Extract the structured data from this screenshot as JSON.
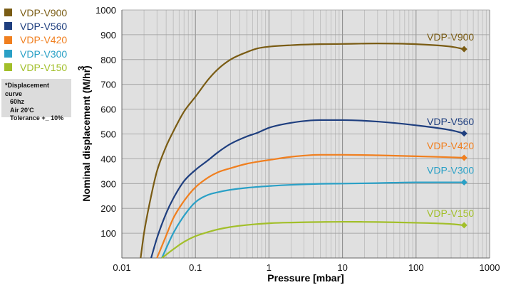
{
  "chart_data": {
    "type": "line",
    "title": "",
    "xlabel": "Pressure [mbar]",
    "ylabel": "Nominal displacement (M/hr)",
    "ylabel_superscript": "3",
    "xscale": "log",
    "xlim": [
      0.01,
      1000
    ],
    "ylim": [
      0,
      1000
    ],
    "x_ticks": [
      "0.01",
      "0.1",
      "1",
      "10",
      "100",
      "1000"
    ],
    "y_ticks": [
      "100",
      "200",
      "300",
      "400",
      "500",
      "600",
      "700",
      "800",
      "900",
      "1000"
    ],
    "grid": true,
    "legend_position": "left",
    "series": [
      {
        "name": "VDP-V900",
        "color": "#7a5c14",
        "x": [
          0.018,
          0.02,
          0.025,
          0.03,
          0.04,
          0.05,
          0.07,
          0.1,
          0.15,
          0.2,
          0.3,
          0.5,
          0.7,
          1,
          2,
          5,
          10,
          30,
          100,
          300,
          450
        ],
        "y": [
          0,
          100,
          250,
          350,
          450,
          510,
          590,
          650,
          720,
          760,
          800,
          830,
          845,
          852,
          858,
          862,
          863,
          865,
          862,
          852,
          842
        ]
      },
      {
        "name": "VDP-V560",
        "color": "#1f3f7f",
        "x": [
          0.025,
          0.03,
          0.04,
          0.05,
          0.07,
          0.1,
          0.15,
          0.2,
          0.3,
          0.5,
          0.7,
          1,
          2,
          5,
          10,
          30,
          100,
          300,
          450
        ],
        "y": [
          0,
          80,
          180,
          240,
          310,
          355,
          395,
          425,
          460,
          490,
          505,
          525,
          545,
          556,
          556,
          550,
          535,
          515,
          502
        ]
      },
      {
        "name": "VDP-V420",
        "color": "#f07f1f",
        "x": [
          0.03,
          0.04,
          0.05,
          0.07,
          0.1,
          0.15,
          0.2,
          0.3,
          0.5,
          0.7,
          1,
          2,
          5,
          10,
          30,
          100,
          300,
          450
        ],
        "y": [
          0,
          90,
          160,
          230,
          285,
          325,
          345,
          362,
          380,
          388,
          395,
          408,
          416,
          416,
          414,
          410,
          406,
          404
        ]
      },
      {
        "name": "VDP-V300",
        "color": "#2aa0c6",
        "x": [
          0.035,
          0.05,
          0.07,
          0.1,
          0.15,
          0.2,
          0.3,
          0.5,
          1,
          2,
          5,
          10,
          30,
          100,
          300,
          450
        ],
        "y": [
          0,
          100,
          170,
          225,
          255,
          265,
          275,
          283,
          290,
          295,
          299,
          300,
          302,
          305,
          305,
          305
        ]
      },
      {
        "name": "VDP-V150",
        "color": "#a2bf2a",
        "x": [
          0.035,
          0.05,
          0.07,
          0.1,
          0.15,
          0.2,
          0.3,
          0.5,
          1,
          2,
          5,
          10,
          30,
          100,
          300,
          450
        ],
        "y": [
          0,
          35,
          65,
          88,
          105,
          115,
          125,
          133,
          140,
          143,
          145,
          146,
          145,
          142,
          137,
          132
        ]
      }
    ],
    "end_labels": [
      "VDP-V900",
      "VDP-V560",
      "VDP-V420",
      "VDP-V300",
      "VDP-V150"
    ],
    "note": {
      "title": "*Displacement curve",
      "lines": [
        "60hz",
        "Air 20'C",
        "Tolerance +_ 10%"
      ]
    }
  }
}
